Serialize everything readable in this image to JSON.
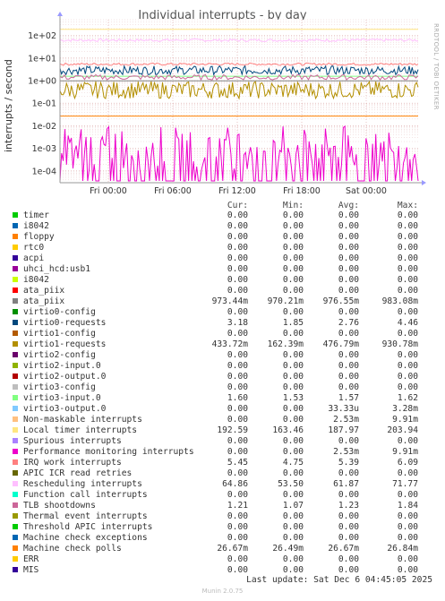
{
  "chart_data": {
    "type": "line",
    "title": "Individual interrupts - by day",
    "ylabel": "interrupts / second",
    "yscale": "log",
    "ylim": [
      3e-05,
      500
    ],
    "yticks": [
      "1e+02",
      "1e+01",
      "1e+00",
      "1e-01",
      "1e-02",
      "1e-03",
      "1e-04"
    ],
    "xticks": [
      "Fri 00:00",
      "Fri 06:00",
      "Fri 12:00",
      "Fri 18:00",
      "Sat 00:00"
    ],
    "grid": true,
    "columns": [
      "Cur:",
      "Min:",
      "Avg:",
      "Max:"
    ],
    "series": [
      {
        "name": "timer",
        "color": "#00cc00",
        "cur": "0.00",
        "min": "0.00",
        "avg": "0.00",
        "max": "0.00"
      },
      {
        "name": "i8042",
        "color": "#0066b3",
        "cur": "0.00",
        "min": "0.00",
        "avg": "0.00",
        "max": "0.00"
      },
      {
        "name": "floppy",
        "color": "#ff8000",
        "cur": "0.00",
        "min": "0.00",
        "avg": "0.00",
        "max": "0.00"
      },
      {
        "name": "rtc0",
        "color": "#ffcc00",
        "cur": "0.00",
        "min": "0.00",
        "avg": "0.00",
        "max": "0.00"
      },
      {
        "name": "acpi",
        "color": "#330099",
        "cur": "0.00",
        "min": "0.00",
        "avg": "0.00",
        "max": "0.00"
      },
      {
        "name": "uhci_hcd:usb1",
        "color": "#990099",
        "cur": "0.00",
        "min": "0.00",
        "avg": "0.00",
        "max": "0.00"
      },
      {
        "name": "i8042",
        "color": "#ccff00",
        "cur": "0.00",
        "min": "0.00",
        "avg": "0.00",
        "max": "0.00"
      },
      {
        "name": "ata_piix",
        "color": "#ff0000",
        "cur": "0.00",
        "min": "0.00",
        "avg": "0.00",
        "max": "0.00"
      },
      {
        "name": "ata_piix",
        "color": "#808080",
        "cur": "973.44m",
        "min": "970.21m",
        "avg": "976.55m",
        "max": "983.08m"
      },
      {
        "name": "virtio0-config",
        "color": "#008f00",
        "cur": "0.00",
        "min": "0.00",
        "avg": "0.00",
        "max": "0.00"
      },
      {
        "name": "virtio0-requests",
        "color": "#00487d",
        "cur": "3.18",
        "min": "1.85",
        "avg": "2.76",
        "max": "4.46"
      },
      {
        "name": "virtio1-config",
        "color": "#b35a00",
        "cur": "0.00",
        "min": "0.00",
        "avg": "0.00",
        "max": "0.00"
      },
      {
        "name": "virtio1-requests",
        "color": "#b38f00",
        "cur": "433.72m",
        "min": "162.39m",
        "avg": "476.79m",
        "max": "930.78m"
      },
      {
        "name": "virtio2-config",
        "color": "#6b006b",
        "cur": "0.00",
        "min": "0.00",
        "avg": "0.00",
        "max": "0.00"
      },
      {
        "name": "virtio2-input.0",
        "color": "#8fb300",
        "cur": "0.00",
        "min": "0.00",
        "avg": "0.00",
        "max": "0.00"
      },
      {
        "name": "virtio2-output.0",
        "color": "#b30000",
        "cur": "0.00",
        "min": "0.00",
        "avg": "0.00",
        "max": "0.00"
      },
      {
        "name": "virtio3-config",
        "color": "#bebebe",
        "cur": "0.00",
        "min": "0.00",
        "avg": "0.00",
        "max": "0.00"
      },
      {
        "name": "virtio3-input.0",
        "color": "#80ff80",
        "cur": "1.60",
        "min": "1.53",
        "avg": "1.57",
        "max": "1.62"
      },
      {
        "name": "virtio3-output.0",
        "color": "#80c9ff",
        "cur": "0.00",
        "min": "0.00",
        "avg": "33.33u",
        "max": "3.28m"
      },
      {
        "name": "Non-maskable interrupts",
        "color": "#ffc080",
        "cur": "0.00",
        "min": "0.00",
        "avg": "2.53m",
        "max": "9.91m"
      },
      {
        "name": "Local timer interrupts",
        "color": "#ffe680",
        "cur": "192.59",
        "min": "163.46",
        "avg": "187.97",
        "max": "203.94"
      },
      {
        "name": "Spurious interrupts",
        "color": "#aa80ff",
        "cur": "0.00",
        "min": "0.00",
        "avg": "0.00",
        "max": "0.00"
      },
      {
        "name": "Performance monitoring interrupts",
        "color": "#ee00cc",
        "cur": "0.00",
        "min": "0.00",
        "avg": "2.53m",
        "max": "9.91m"
      },
      {
        "name": "IRQ work interrupts",
        "color": "#ff8080",
        "cur": "5.45",
        "min": "4.75",
        "avg": "5.39",
        "max": "6.09"
      },
      {
        "name": "APIC ICR read retries",
        "color": "#666600",
        "cur": "0.00",
        "min": "0.00",
        "avg": "0.00",
        "max": "0.00"
      },
      {
        "name": "Rescheduling interrupts",
        "color": "#ffbfff",
        "cur": "64.86",
        "min": "53.50",
        "avg": "61.87",
        "max": "71.77"
      },
      {
        "name": "Function call interrupts",
        "color": "#00ffcc",
        "cur": "0.00",
        "min": "0.00",
        "avg": "0.00",
        "max": "0.00"
      },
      {
        "name": "TLB shootdowns",
        "color": "#cc6699",
        "cur": "1.21",
        "min": "1.07",
        "avg": "1.23",
        "max": "1.84"
      },
      {
        "name": "Thermal event interrupts",
        "color": "#999900",
        "cur": "0.00",
        "min": "0.00",
        "avg": "0.00",
        "max": "0.00"
      },
      {
        "name": "Threshold APIC interrupts",
        "color": "#00cc00",
        "cur": "0.00",
        "min": "0.00",
        "avg": "0.00",
        "max": "0.00"
      },
      {
        "name": "Machine check exceptions",
        "color": "#0066b3",
        "cur": "0.00",
        "min": "0.00",
        "avg": "0.00",
        "max": "0.00"
      },
      {
        "name": "Machine check polls",
        "color": "#ff8000",
        "cur": "26.67m",
        "min": "26.49m",
        "avg": "26.67m",
        "max": "26.84m"
      },
      {
        "name": "ERR",
        "color": "#ffcc00",
        "cur": "0.00",
        "min": "0.00",
        "avg": "0.00",
        "max": "0.00"
      },
      {
        "name": "MIS",
        "color": "#330099",
        "cur": "0.00",
        "min": "0.00",
        "avg": "0.00",
        "max": "0.00"
      }
    ]
  },
  "side_label": "RRDTOOL / TOBI OETIKER",
  "last_update": "Last update: Sat Dec  6 04:45:05 2025",
  "footer": "Munin 2.0.75"
}
